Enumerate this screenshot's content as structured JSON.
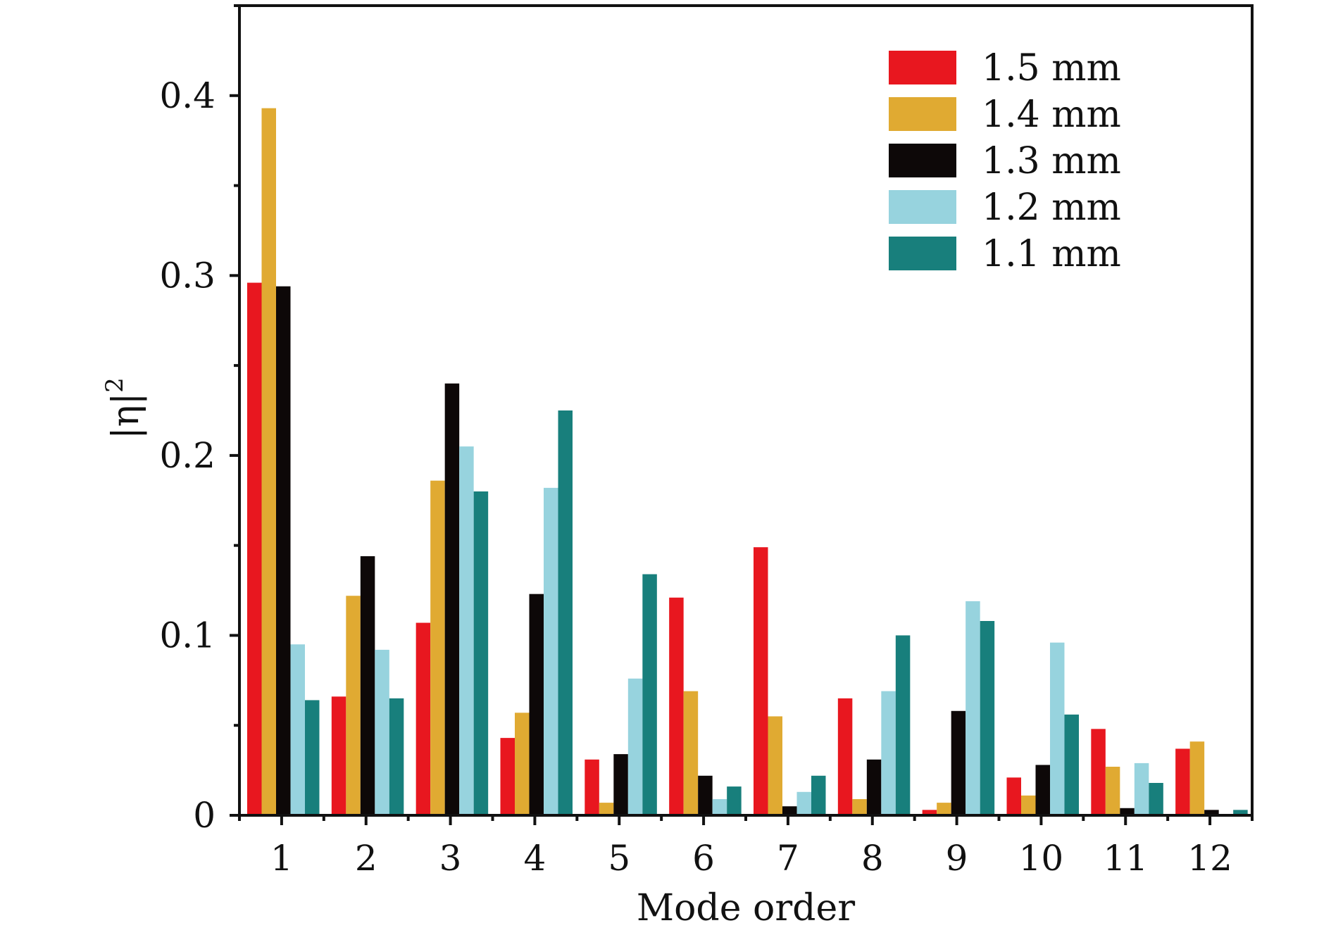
{
  "chart_data": {
    "type": "bar",
    "title": "",
    "xlabel": "Mode order",
    "ylabel": "|η|",
    "ylabel_superscript": "2",
    "categories": [
      "1",
      "2",
      "3",
      "4",
      "5",
      "6",
      "7",
      "8",
      "9",
      "10",
      "11",
      "12"
    ],
    "ylim": [
      0,
      0.45
    ],
    "yticks": [
      0,
      0.1,
      0.2,
      0.3,
      0.4
    ],
    "ytick_labels": [
      "0",
      "0.1",
      "0.2",
      "0.3",
      "0.4"
    ],
    "grid": false,
    "legend_position": "top-right",
    "series": [
      {
        "name": "1.5 mm",
        "color": "#e8171f",
        "values": [
          0.296,
          0.066,
          0.107,
          0.043,
          0.031,
          0.121,
          0.149,
          0.065,
          0.003,
          0.021,
          0.048,
          0.037
        ]
      },
      {
        "name": "1.4 mm",
        "color": "#e0aa32",
        "values": [
          0.393,
          0.122,
          0.186,
          0.057,
          0.007,
          0.069,
          0.055,
          0.009,
          0.007,
          0.011,
          0.027,
          0.041
        ]
      },
      {
        "name": "1.3 mm",
        "color": "#0d0808",
        "values": [
          0.294,
          0.144,
          0.24,
          0.123,
          0.034,
          0.022,
          0.005,
          0.031,
          0.058,
          0.028,
          0.004,
          0.003
        ]
      },
      {
        "name": "1.2 mm",
        "color": "#97d3de",
        "values": [
          0.095,
          0.092,
          0.205,
          0.182,
          0.076,
          0.009,
          0.013,
          0.069,
          0.119,
          0.096,
          0.029,
          0.0
        ]
      },
      {
        "name": "1.1 mm",
        "color": "#187f7c",
        "values": [
          0.064,
          0.065,
          0.18,
          0.225,
          0.134,
          0.016,
          0.022,
          0.1,
          0.108,
          0.056,
          0.018,
          0.003
        ]
      }
    ]
  }
}
